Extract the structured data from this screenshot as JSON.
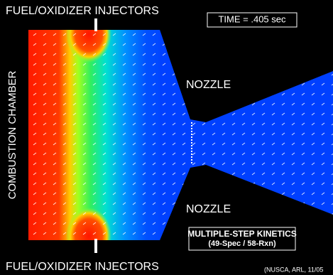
{
  "header": {
    "top_label": "FUEL/OXIDIZER INJECTORS",
    "time": "TIME = .405 sec"
  },
  "labels": {
    "chamber": "COMBUSTION CHAMBER",
    "nozzle_top": "NOZZLE",
    "nozzle_bottom": "NOZZLE",
    "kinetics_title": "MULTIPLE-STEP KINETICS",
    "kinetics_detail": "(49-Spec / 58-Rxn)"
  },
  "footer": {
    "bottom_label": "FUEL/OXIDIZER INJECTORS",
    "credit": "(NUSCA, ARL, 11/05"
  }
}
